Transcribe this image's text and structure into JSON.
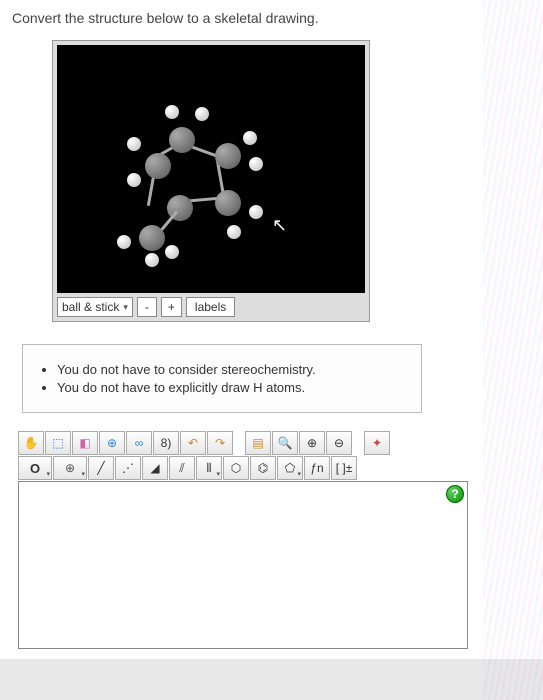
{
  "prompt": "Convert the structure below to a skeletal drawing.",
  "molecule_panel": {
    "viewer_bg": "#000000",
    "mode_dropdown": {
      "selected": "ball & stick"
    },
    "zoom_out_label": "-",
    "zoom_in_label": "+",
    "labels_button": "labels"
  },
  "instructions": {
    "items": [
      "You do not have to consider stereochemistry.",
      "You do not have to explicitly draw H atoms."
    ]
  },
  "editor": {
    "row1": [
      {
        "name": "hand-tool",
        "glyph": "✋",
        "color": "#cc4444"
      },
      {
        "name": "select-tool",
        "glyph": "⬚",
        "color": "#3366cc"
      },
      {
        "name": "eraser-tool",
        "glyph": "◧",
        "color": "#cc66aa"
      },
      {
        "name": "plus-circle",
        "glyph": "⊕",
        "color": "#3388cc"
      },
      {
        "name": "infinity-tool",
        "glyph": "∞",
        "color": "#3388cc"
      },
      {
        "name": "bracket-tool",
        "glyph": "8)",
        "color": "#333"
      },
      {
        "name": "undo",
        "glyph": "↶",
        "color": "#cc8833"
      },
      {
        "name": "redo",
        "glyph": "↷",
        "color": "#cc8833"
      },
      {
        "name": "spacer",
        "glyph": "",
        "color": ""
      },
      {
        "name": "color-tool",
        "glyph": "▤",
        "color": "#cc8833"
      },
      {
        "name": "search-tool",
        "glyph": "🔍",
        "color": "#333"
      },
      {
        "name": "zoom-in",
        "glyph": "⊕",
        "color": "#333"
      },
      {
        "name": "zoom-out",
        "glyph": "⊖",
        "color": "#333"
      },
      {
        "name": "spacer2",
        "glyph": "",
        "color": ""
      },
      {
        "name": "sparkle",
        "glyph": "✦",
        "color": "#cc4444"
      }
    ],
    "row2": [
      {
        "name": "atom-o",
        "glyph": "O",
        "color": "#333",
        "caret": true
      },
      {
        "name": "plus-target",
        "glyph": "⊕",
        "color": "#555",
        "caret": true
      },
      {
        "name": "single-bond",
        "glyph": "╱",
        "color": "#333"
      },
      {
        "name": "dotted-bond",
        "glyph": "⋰",
        "color": "#333"
      },
      {
        "name": "wedge-bond",
        "glyph": "◢",
        "color": "#333"
      },
      {
        "name": "double-bond",
        "glyph": "⫽",
        "color": "#333"
      },
      {
        "name": "triple-bond",
        "glyph": "⫴",
        "color": "#333",
        "caret": true
      },
      {
        "name": "hexagon",
        "glyph": "⬡",
        "color": "#333"
      },
      {
        "name": "benzene",
        "glyph": "⌬",
        "color": "#333"
      },
      {
        "name": "pentagon",
        "glyph": "⬠",
        "color": "#333",
        "caret": true
      },
      {
        "name": "function",
        "glyph": "ƒn",
        "color": "#333"
      },
      {
        "name": "charge",
        "glyph": "[ ]±",
        "color": "#333"
      }
    ],
    "help_tooltip": "?"
  },
  "colors": {
    "page_bg": "#e8e8e8",
    "panel_border": "#999999",
    "toolbar_border": "#aaaaaa"
  }
}
